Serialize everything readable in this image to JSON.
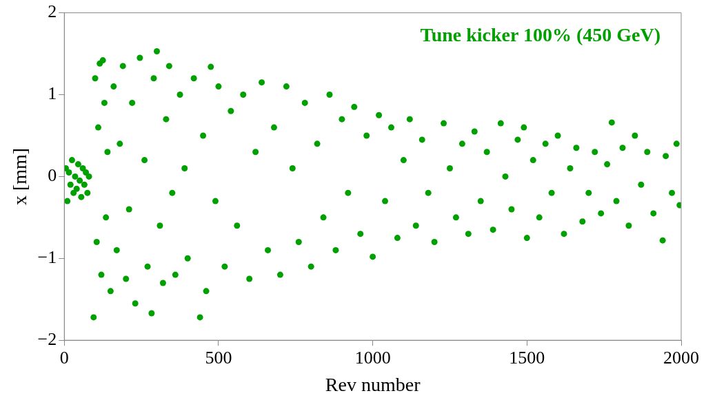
{
  "chart_data": {
    "type": "scatter",
    "xlabel": "Rev number",
    "ylabel": "x [mm]",
    "annotations": [
      "Tune kicker 100% (450 GeV)"
    ],
    "marker": "circle",
    "grid": false,
    "xlim": [
      0,
      2000
    ],
    "xticks": [
      0,
      500,
      1000,
      1500,
      2000
    ],
    "ylim": [
      -2,
      2
    ],
    "yticks": [
      {
        "value": -2,
        "label": "−2"
      },
      {
        "value": -1,
        "label": "−1"
      },
      0,
      1,
      2
    ],
    "series": [
      {
        "color": "#00a000",
        "x": [
          5,
          10,
          15,
          20,
          25,
          30,
          35,
          40,
          45,
          50,
          55,
          60,
          65,
          70,
          75,
          80,
          95,
          100,
          105,
          110,
          115,
          120,
          125,
          130,
          135,
          140,
          150,
          160,
          170,
          180,
          190,
          200,
          210,
          220,
          230,
          245,
          260,
          270,
          283,
          290,
          300,
          310,
          320,
          330,
          340,
          350,
          360,
          375,
          390,
          400,
          420,
          440,
          450,
          460,
          475,
          490,
          500,
          520,
          540,
          560,
          580,
          600,
          620,
          640,
          660,
          680,
          700,
          720,
          740,
          760,
          780,
          800,
          820,
          840,
          860,
          880,
          900,
          920,
          940,
          960,
          980,
          1000,
          1020,
          1040,
          1060,
          1080,
          1100,
          1120,
          1140,
          1160,
          1180,
          1200,
          1230,
          1250,
          1270,
          1290,
          1310,
          1330,
          1350,
          1370,
          1390,
          1415,
          1430,
          1450,
          1470,
          1490,
          1500,
          1520,
          1540,
          1560,
          1580,
          1600,
          1620,
          1640,
          1660,
          1680,
          1700,
          1720,
          1740,
          1760,
          1775,
          1790,
          1810,
          1830,
          1850,
          1870,
          1890,
          1910,
          1940,
          1950,
          1970,
          1985,
          1995
        ],
        "values": [
          0.1,
          -0.3,
          0.05,
          -0.1,
          0.2,
          -0.2,
          0.0,
          -0.15,
          0.15,
          -0.05,
          -0.25,
          0.1,
          -0.1,
          0.05,
          -0.2,
          0.0,
          -1.72,
          1.2,
          -0.8,
          0.6,
          1.38,
          -1.2,
          1.42,
          0.9,
          -0.5,
          0.3,
          -1.4,
          1.1,
          -0.9,
          0.4,
          1.35,
          -1.25,
          -0.4,
          0.9,
          -1.55,
          1.45,
          0.2,
          -1.1,
          -1.67,
          1.2,
          1.53,
          -0.6,
          -1.3,
          0.7,
          1.35,
          -0.2,
          -1.2,
          1.0,
          0.1,
          -1.0,
          1.2,
          -1.72,
          0.5,
          -1.4,
          1.34,
          -0.3,
          1.1,
          -1.1,
          0.8,
          -0.6,
          1.0,
          -1.25,
          0.3,
          1.15,
          -0.9,
          0.6,
          -1.2,
          1.1,
          0.1,
          -0.8,
          0.9,
          -1.1,
          0.4,
          -0.5,
          1.0,
          -0.9,
          0.7,
          -0.2,
          0.85,
          -0.7,
          0.5,
          -0.98,
          0.75,
          -0.3,
          0.6,
          -0.75,
          0.2,
          0.7,
          -0.6,
          0.45,
          -0.2,
          -0.8,
          0.65,
          0.1,
          -0.5,
          0.4,
          -0.7,
          0.55,
          -0.3,
          0.3,
          -0.65,
          0.65,
          0.0,
          -0.4,
          0.45,
          0.6,
          -0.75,
          0.2,
          -0.5,
          0.4,
          -0.2,
          0.5,
          -0.7,
          0.1,
          0.35,
          -0.55,
          -0.2,
          0.3,
          -0.45,
          0.15,
          0.66,
          -0.3,
          0.35,
          -0.6,
          0.5,
          -0.1,
          0.3,
          -0.45,
          -0.78,
          0.25,
          -0.2,
          0.4,
          -0.35
        ]
      }
    ]
  }
}
